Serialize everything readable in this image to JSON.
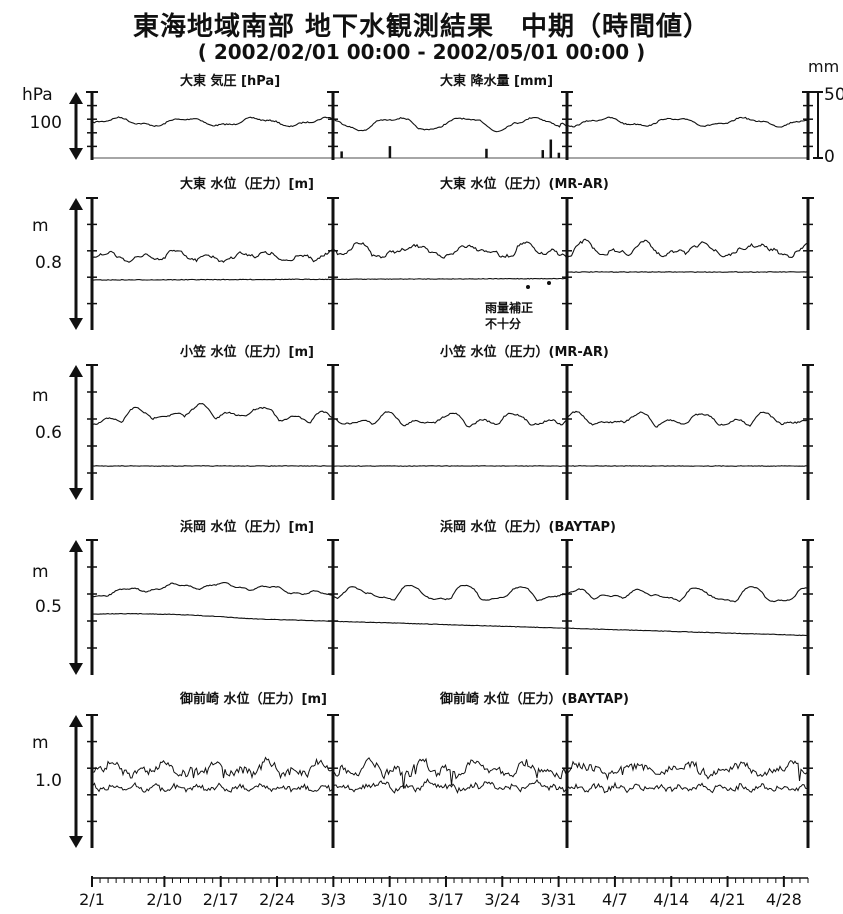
{
  "title": "東海地域南部 地下水観測結果　中期（時間値）",
  "subtitle": "( 2002/02/01 00:00 - 2002/05/01 00:00 )",
  "chart_data": {
    "type": "line",
    "x_axis": {
      "range": [
        "2002/02/01 00:00",
        "2002/05/01 00:00"
      ],
      "tick_labels": [
        "2/1",
        "2/10",
        "2/17",
        "2/24",
        "3/3",
        "3/10",
        "3/17",
        "3/24",
        "3/31",
        "4/7",
        "4/14",
        "4/21",
        "4/28"
      ],
      "tick_dates": [
        "2002-02-01",
        "2002-02-10",
        "2002-02-17",
        "2002-02-24",
        "2002-03-03",
        "2002-03-10",
        "2002-03-17",
        "2002-03-24",
        "2002-03-31",
        "2002-04-07",
        "2002-04-14",
        "2002-04-21",
        "2002-04-28"
      ],
      "minor_ticks": "daily"
    },
    "panels": [
      {
        "id": "ohigashi-pressure-rain",
        "left_label": "大東 気圧 [hPa]",
        "right_label": "大東 降水量 [mm]",
        "left_unit": "hPa",
        "left_tick": "100",
        "right_unit": "mm",
        "right_ticks": [
          "50",
          "0"
        ],
        "series": [
          {
            "name": "大東 気圧",
            "key": "pressure",
            "style": "wavy-trace"
          },
          {
            "name": "大東 降水量",
            "key": "rain",
            "style": "bars",
            "events": [
              {
                "date": "2002-03-04",
                "value": 5
              },
              {
                "date": "2002-03-10",
                "value": 9
              },
              {
                "date": "2002-03-22",
                "value": 7
              },
              {
                "date": "2002-03-29",
                "value": 6
              },
              {
                "date": "2002-03-30",
                "value": 14
              },
              {
                "date": "2002-03-31",
                "value": 4
              }
            ]
          }
        ]
      },
      {
        "id": "ohigashi-water",
        "left_label": "大東 水位（圧力）[m]",
        "right_label": "大東 水位（圧力）(MR-AR)",
        "left_unit": "m",
        "left_tick": "0.8",
        "annotation": "雨量補正\n不十分",
        "series": [
          {
            "name": "大東 水位（圧力）",
            "style": "wavy-trace"
          },
          {
            "name": "大東 水位（圧力）(MR-AR)",
            "style": "flat-trace",
            "step_at": "2002-04-01"
          }
        ]
      },
      {
        "id": "ogasa-water",
        "left_label": "小笠 水位（圧力）[m]",
        "right_label": "小笠 水位（圧力）(MR-AR)",
        "left_unit": "m",
        "left_tick": "0.6",
        "series": [
          {
            "name": "小笠 水位（圧力）",
            "style": "wavy-trace"
          },
          {
            "name": "小笠 水位（圧力）(MR-AR)",
            "style": "flat-trace"
          }
        ]
      },
      {
        "id": "hamaoka-water",
        "left_label": "浜岡 水位（圧力）[m]",
        "right_label": "浜岡 水位（圧力）(BAYTAP)",
        "left_unit": "m",
        "left_tick": "0.5",
        "series": [
          {
            "name": "浜岡 水位（圧力）",
            "style": "wavy-trace"
          },
          {
            "name": "浜岡 水位（圧力）(BAYTAP)",
            "style": "declining-trace"
          }
        ]
      },
      {
        "id": "omaezaki-water",
        "left_label": "御前崎 水位（圧力）[m]",
        "right_label": "御前崎 水位（圧力）(BAYTAP)",
        "left_unit": "m",
        "left_tick": "1.0",
        "series": [
          {
            "name": "御前崎 水位（圧力）",
            "style": "noisy-trace"
          },
          {
            "name": "御前崎 水位（圧力）(BAYTAP)",
            "style": "noisy-trace"
          }
        ]
      }
    ]
  }
}
